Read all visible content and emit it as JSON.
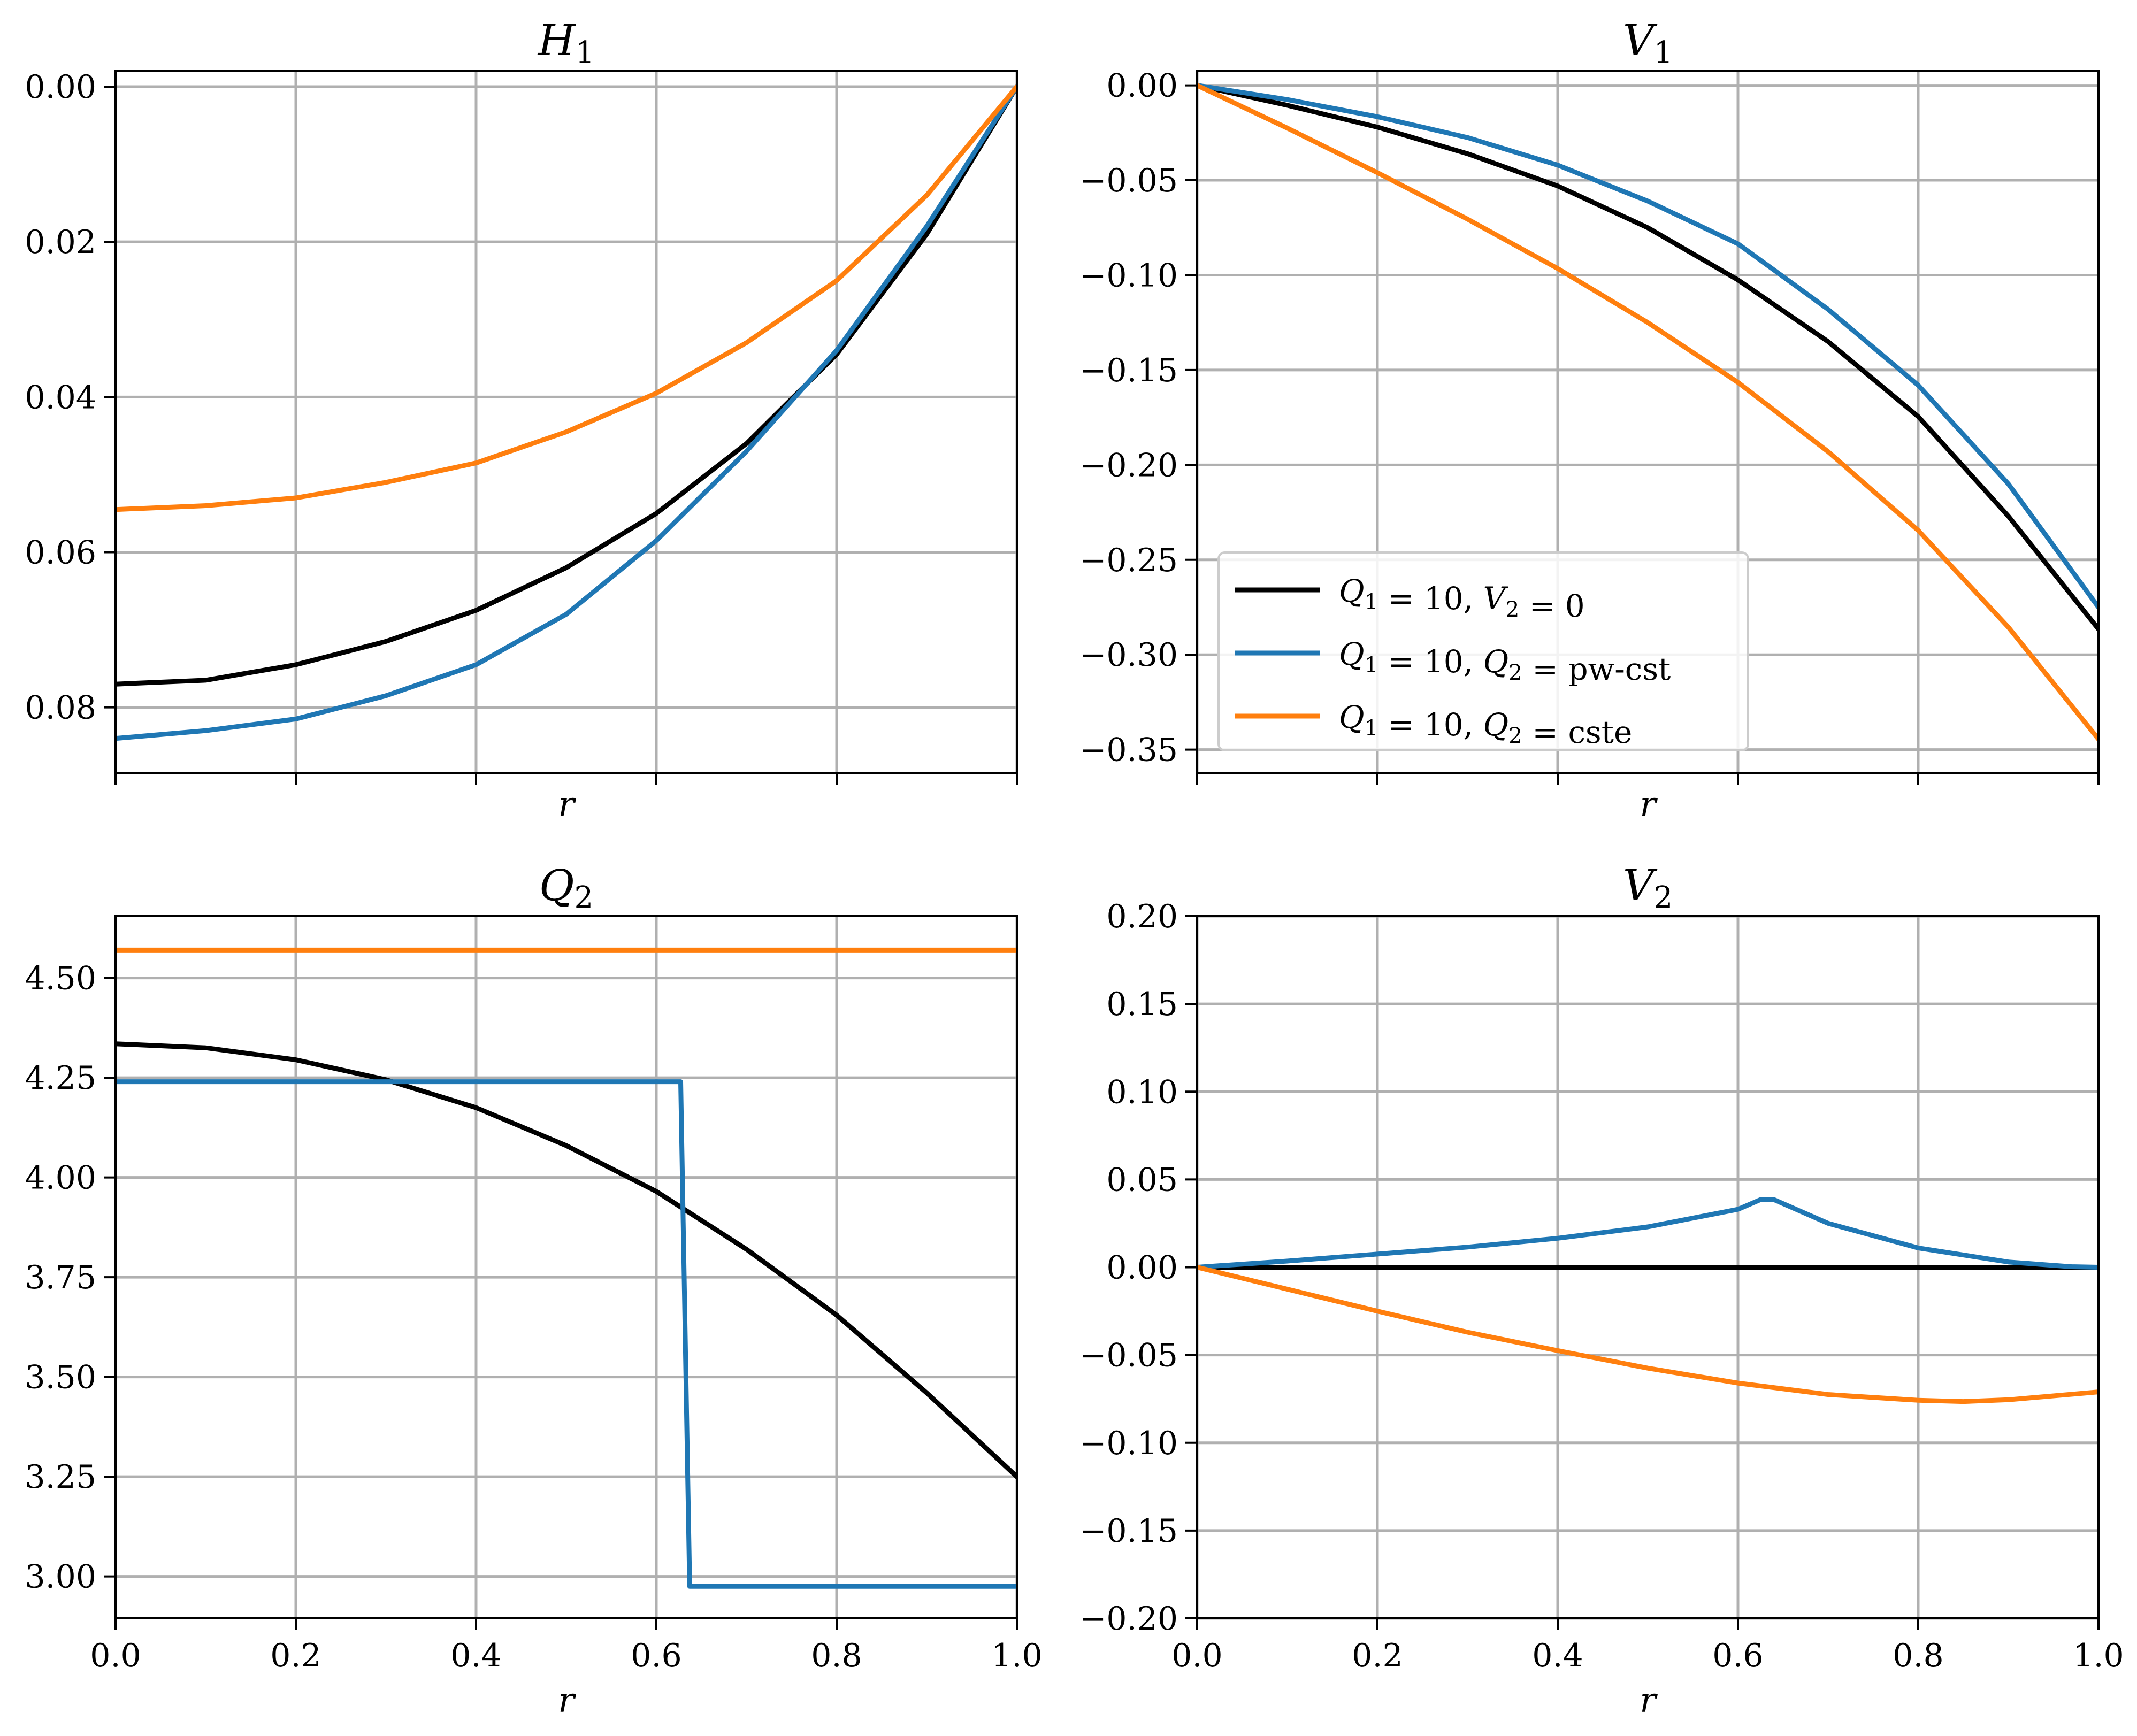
{
  "colors": {
    "black": "#000000",
    "blue": "#1f77b4",
    "orange": "#ff7f0e",
    "grid": "#b0b0b0"
  },
  "legend": {
    "items": [
      {
        "label": "Q_1 = 10, V_2 = 0",
        "color": "#000000"
      },
      {
        "label": "Q_1 = 10, Q_2 = pw-cst",
        "color": "#1f77b4"
      },
      {
        "label": "Q_1 = 10, Q_2 = cste",
        "color": "#ff7f0e"
      }
    ]
  },
  "chart_data": [
    {
      "id": "H1",
      "type": "line",
      "title": "H_1",
      "xlabel": "r",
      "xlim": [
        0,
        1
      ],
      "ylim": [
        0.0885,
        -0.002
      ],
      "yinverted": true,
      "xticks": [
        0.0,
        0.2,
        0.4,
        0.6,
        0.8,
        1.0
      ],
      "xticklabels": [],
      "yticks": [
        0.0,
        0.02,
        0.04,
        0.06,
        0.08
      ],
      "yticklabels": [
        "0.00",
        "0.02",
        "0.04",
        "0.06",
        "0.08"
      ],
      "series": [
        {
          "name": "Q_1 = 10, V_2 = 0",
          "color": "#000000",
          "x": [
            0,
            0.1,
            0.2,
            0.3,
            0.4,
            0.5,
            0.6,
            0.7,
            0.8,
            0.9,
            1.0
          ],
          "y": [
            0.077,
            0.0765,
            0.0745,
            0.0715,
            0.0675,
            0.062,
            0.055,
            0.046,
            0.0345,
            0.019,
            0.0
          ]
        },
        {
          "name": "Q_1 = 10, Q_2 = pw-cst",
          "color": "#1f77b4",
          "x": [
            0,
            0.1,
            0.2,
            0.3,
            0.4,
            0.5,
            0.6,
            0.7,
            0.8,
            0.9,
            1.0
          ],
          "y": [
            0.084,
            0.083,
            0.0815,
            0.0785,
            0.0745,
            0.068,
            0.0585,
            0.047,
            0.034,
            0.018,
            0.0
          ]
        },
        {
          "name": "Q_1 = 10, Q_2 = cste",
          "color": "#ff7f0e",
          "x": [
            0,
            0.1,
            0.2,
            0.3,
            0.4,
            0.5,
            0.6,
            0.7,
            0.8,
            0.9,
            1.0
          ],
          "y": [
            0.0545,
            0.054,
            0.053,
            0.051,
            0.0485,
            0.0445,
            0.0395,
            0.033,
            0.025,
            0.014,
            0.0
          ]
        }
      ]
    },
    {
      "id": "V1",
      "type": "line",
      "title": "V_1",
      "xlabel": "r",
      "xlim": [
        0,
        1
      ],
      "ylim": [
        -0.3625,
        0.0075
      ],
      "xticks": [
        0.0,
        0.2,
        0.4,
        0.6,
        0.8,
        1.0
      ],
      "xticklabels": [],
      "yticks": [
        0.0,
        -0.05,
        -0.1,
        -0.15,
        -0.2,
        -0.25,
        -0.3,
        -0.35
      ],
      "yticklabels": [
        "0.00",
        "−0.05",
        "−0.10",
        "−0.15",
        "−0.20",
        "−0.25",
        "−0.30",
        "−0.35"
      ],
      "legend_position": "lower-left",
      "series": [
        {
          "name": "Q_1 = 10, V_2 = 0",
          "color": "#000000",
          "x": [
            0,
            0.1,
            0.2,
            0.3,
            0.4,
            0.5,
            0.6,
            0.7,
            0.8,
            0.9,
            1.0
          ],
          "y": [
            0.0,
            -0.0105,
            -0.022,
            -0.036,
            -0.053,
            -0.075,
            -0.1025,
            -0.135,
            -0.1745,
            -0.227,
            -0.2865
          ]
        },
        {
          "name": "Q_1 = 10, Q_2 = pw-cst",
          "color": "#1f77b4",
          "x": [
            0,
            0.1,
            0.2,
            0.3,
            0.4,
            0.5,
            0.6,
            0.7,
            0.8,
            0.9,
            1.0
          ],
          "y": [
            0.0,
            -0.0075,
            -0.0165,
            -0.0275,
            -0.042,
            -0.061,
            -0.0835,
            -0.118,
            -0.158,
            -0.21,
            -0.275
          ]
        },
        {
          "name": "Q_1 = 10, Q_2 = cste",
          "color": "#ff7f0e",
          "x": [
            0,
            0.1,
            0.2,
            0.3,
            0.4,
            0.5,
            0.6,
            0.7,
            0.8,
            0.9,
            1.0
          ],
          "y": [
            0.0,
            -0.0225,
            -0.046,
            -0.0705,
            -0.0965,
            -0.125,
            -0.1565,
            -0.193,
            -0.2345,
            -0.2855,
            -0.3445
          ]
        }
      ]
    },
    {
      "id": "Q2",
      "type": "line",
      "title": "Q_2",
      "xlabel": "r",
      "xlim": [
        0,
        1
      ],
      "ylim": [
        2.895,
        4.655
      ],
      "xticks": [
        0.0,
        0.2,
        0.4,
        0.6,
        0.8,
        1.0
      ],
      "xticklabels": [
        "0.0",
        "0.2",
        "0.4",
        "0.6",
        "0.8",
        "1.0"
      ],
      "yticks": [
        3.0,
        3.25,
        3.5,
        3.75,
        4.0,
        4.25,
        4.5
      ],
      "yticklabels": [
        "3.00",
        "3.25",
        "3.50",
        "3.75",
        "4.00",
        "4.25",
        "4.50"
      ],
      "series": [
        {
          "name": "Q_1 = 10, V_2 = 0",
          "color": "#000000",
          "x": [
            0,
            0.1,
            0.2,
            0.3,
            0.4,
            0.5,
            0.6,
            0.7,
            0.8,
            0.9,
            1.0
          ],
          "y": [
            4.335,
            4.325,
            4.295,
            4.245,
            4.175,
            4.08,
            3.965,
            3.82,
            3.655,
            3.46,
            3.25
          ]
        },
        {
          "name": "Q_1 = 10, Q_2 = pw-cst",
          "color": "#1f77b4",
          "x": [
            0,
            0.627,
            0.637,
            1.0
          ],
          "y": [
            4.24,
            4.24,
            2.975,
            2.975
          ]
        },
        {
          "name": "Q_1 = 10, Q_2 = cste",
          "color": "#ff7f0e",
          "x": [
            0,
            1.0
          ],
          "y": [
            4.57,
            4.57
          ]
        }
      ]
    },
    {
      "id": "V2",
      "type": "line",
      "title": "V_2",
      "xlabel": "r",
      "xlim": [
        0,
        1
      ],
      "ylim": [
        -0.2,
        0.2
      ],
      "xticks": [
        0.0,
        0.2,
        0.4,
        0.6,
        0.8,
        1.0
      ],
      "xticklabels": [
        "0.0",
        "0.2",
        "0.4",
        "0.6",
        "0.8",
        "1.0"
      ],
      "yticks": [
        0.2,
        0.15,
        0.1,
        0.05,
        0.0,
        -0.05,
        -0.1,
        -0.15,
        -0.2
      ],
      "yticklabels": [
        "0.20",
        "0.15",
        "0.10",
        "0.05",
        "0.00",
        "−0.05",
        "−0.10",
        "−0.15",
        "−0.20"
      ],
      "series": [
        {
          "name": "Q_1 = 10, V_2 = 0",
          "color": "#000000",
          "x": [
            0,
            1.0
          ],
          "y": [
            0.0,
            0.0
          ]
        },
        {
          "name": "Q_1 = 10, Q_2 = pw-cst",
          "color": "#1f77b4",
          "x": [
            0,
            0.1,
            0.2,
            0.3,
            0.4,
            0.5,
            0.6,
            0.625,
            0.64,
            0.7,
            0.8,
            0.9,
            0.97,
            1.0
          ],
          "y": [
            0.0,
            0.0035,
            0.0075,
            0.0115,
            0.0165,
            0.023,
            0.033,
            0.0385,
            0.0385,
            0.025,
            0.011,
            0.003,
            0.0003,
            0.0
          ]
        },
        {
          "name": "Q_1 = 10, Q_2 = cste",
          "color": "#ff7f0e",
          "x": [
            0,
            0.1,
            0.2,
            0.3,
            0.4,
            0.5,
            0.6,
            0.7,
            0.8,
            0.85,
            0.9,
            1.0
          ],
          "y": [
            0.0,
            -0.0125,
            -0.025,
            -0.037,
            -0.0475,
            -0.0575,
            -0.066,
            -0.0725,
            -0.0758,
            -0.0765,
            -0.0755,
            -0.071
          ]
        }
      ]
    }
  ]
}
